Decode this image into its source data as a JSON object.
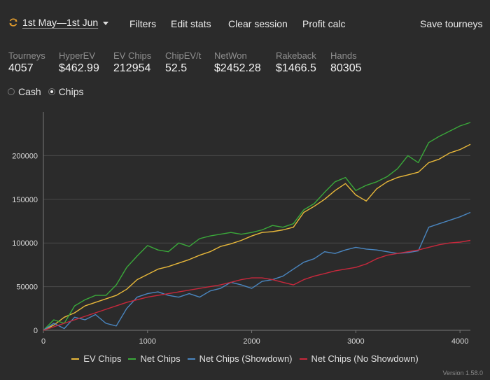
{
  "header": {
    "date_range": "1st May—1st Jun",
    "filters": "Filters",
    "edit_stats": "Edit stats",
    "clear_session": "Clear session",
    "profit_calc": "Profit calc",
    "save_tourneys": "Save tourneys"
  },
  "stats": [
    {
      "label": "Tourneys",
      "value": "4057"
    },
    {
      "label": "HyperEV",
      "value": "$462.99"
    },
    {
      "label": "EV Chips",
      "value": "212954"
    },
    {
      "label": "ChipEV/t",
      "value": "52.5"
    },
    {
      "label": "NetWon",
      "value": "$2452.28"
    },
    {
      "label": "Rakeback",
      "value": "$1466.5"
    },
    {
      "label": "Hands",
      "value": "80305"
    }
  ],
  "mode": {
    "cash": "Cash",
    "chips": "Chips",
    "selected": "chips"
  },
  "colors": {
    "ev": "#e8b83a",
    "net": "#3aa83a",
    "showdown": "#4a86c0",
    "noshowdown": "#c8283c",
    "accent": "#e09b2d"
  },
  "chart_data": {
    "type": "line",
    "xlim": [
      0,
      4100
    ],
    "ylim": [
      0,
      250000
    ],
    "x_ticks": [
      0,
      1000,
      2000,
      3000,
      4000
    ],
    "y_ticks": [
      0,
      50000,
      100000,
      150000,
      200000
    ],
    "grid": true,
    "legend": "bottom-center",
    "series": [
      {
        "name": "EV Chips",
        "color": "#e8b83a",
        "x": [
          0,
          100,
          200,
          300,
          400,
          500,
          600,
          700,
          800,
          900,
          1000,
          1100,
          1200,
          1300,
          1400,
          1500,
          1600,
          1700,
          1800,
          1900,
          2000,
          2100,
          2200,
          2300,
          2400,
          2500,
          2600,
          2700,
          2800,
          2900,
          3000,
          3100,
          3200,
          3300,
          3400,
          3500,
          3600,
          3700,
          3800,
          3900,
          4000,
          4100
        ],
        "y": [
          0,
          6000,
          15000,
          20000,
          28000,
          32000,
          36000,
          40000,
          47000,
          58000,
          64000,
          70000,
          73000,
          77000,
          81000,
          86000,
          90000,
          96000,
          99000,
          103000,
          108000,
          112000,
          113000,
          115000,
          118000,
          135000,
          142000,
          150000,
          160000,
          168000,
          155000,
          148000,
          162000,
          170000,
          175000,
          178000,
          181000,
          192000,
          196000,
          203000,
          207000,
          213000
        ]
      },
      {
        "name": "Net Chips",
        "color": "#3aa83a",
        "x": [
          0,
          100,
          200,
          300,
          400,
          500,
          600,
          700,
          800,
          900,
          1000,
          1100,
          1200,
          1300,
          1400,
          1500,
          1600,
          1700,
          1800,
          1900,
          2000,
          2100,
          2200,
          2300,
          2400,
          2500,
          2600,
          2700,
          2800,
          2900,
          3000,
          3100,
          3200,
          3300,
          3400,
          3500,
          3600,
          3700,
          3800,
          3900,
          4000,
          4100
        ],
        "y": [
          0,
          12000,
          8000,
          28000,
          35000,
          40000,
          40000,
          52000,
          72000,
          85000,
          97000,
          92000,
          90000,
          100000,
          96000,
          105000,
          108000,
          110000,
          112000,
          110000,
          112000,
          115000,
          120000,
          118000,
          122000,
          138000,
          145000,
          158000,
          170000,
          175000,
          160000,
          166000,
          170000,
          176000,
          185000,
          200000,
          192000,
          215000,
          222000,
          228000,
          234000,
          238000
        ]
      },
      {
        "name": "Net Chips (Showdown)",
        "color": "#4a86c0",
        "x": [
          0,
          100,
          200,
          300,
          400,
          500,
          600,
          700,
          800,
          900,
          1000,
          1100,
          1200,
          1300,
          1400,
          1500,
          1600,
          1700,
          1800,
          1900,
          2000,
          2100,
          2200,
          2300,
          2400,
          2500,
          2600,
          2700,
          2800,
          2900,
          3000,
          3100,
          3200,
          3300,
          3400,
          3500,
          3600,
          3700,
          3800,
          3900,
          4000,
          4100
        ],
        "y": [
          0,
          8000,
          2000,
          15000,
          12000,
          18000,
          8000,
          5000,
          25000,
          38000,
          42000,
          44000,
          40000,
          38000,
          42000,
          38000,
          45000,
          48000,
          55000,
          52000,
          48000,
          56000,
          58000,
          62000,
          70000,
          78000,
          82000,
          90000,
          88000,
          92000,
          95000,
          93000,
          92000,
          90000,
          88000,
          89000,
          91000,
          118000,
          122000,
          126000,
          130000,
          135000
        ]
      },
      {
        "name": "Net Chips (No Showdown)",
        "color": "#c8283c",
        "x": [
          0,
          100,
          200,
          300,
          400,
          500,
          600,
          700,
          800,
          900,
          1000,
          1100,
          1200,
          1300,
          1400,
          1500,
          1600,
          1700,
          1800,
          1900,
          2000,
          2100,
          2200,
          2300,
          2400,
          2500,
          2600,
          2700,
          2800,
          2900,
          3000,
          3100,
          3200,
          3300,
          3400,
          3500,
          3600,
          3700,
          3800,
          3900,
          4000,
          4100
        ],
        "y": [
          0,
          4000,
          8000,
          12000,
          16000,
          20000,
          24000,
          28000,
          32000,
          35000,
          38000,
          40000,
          42000,
          44000,
          46000,
          48000,
          50000,
          52000,
          55000,
          58000,
          60000,
          60000,
          58000,
          55000,
          52000,
          58000,
          62000,
          65000,
          68000,
          70000,
          72000,
          76000,
          82000,
          86000,
          88000,
          90000,
          92000,
          95000,
          98000,
          100000,
          101000,
          103000
        ]
      }
    ]
  },
  "legend": {
    "ev": "EV Chips",
    "net": "Net Chips",
    "showdown": "Net Chips (Showdown)",
    "noshowdown": "Net Chips (No Showdown)"
  },
  "footer": {
    "version": "Version 1.58.0"
  }
}
